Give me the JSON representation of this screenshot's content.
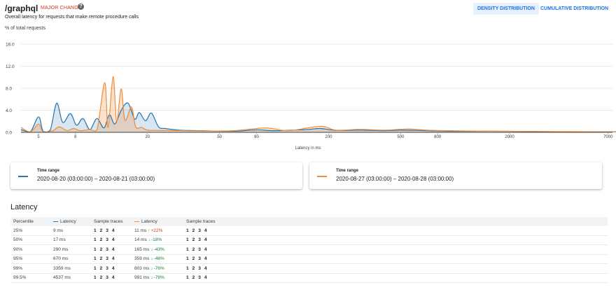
{
  "header": {
    "title": "/graphql",
    "badge": "MAJOR CHANGE",
    "help_icon": "?",
    "subtitle": "Overall latency for requests that make remote procedure calls",
    "y_unit": "% of total requests",
    "tabs": [
      "DENSITY DISTRIBUTION",
      "CUMULATIVE DISTRIBUTION"
    ]
  },
  "chart_data": {
    "type": "area",
    "ylabel": "% of total requests",
    "xlabel": "Latency in ms",
    "x_scale": "log",
    "y_ticks": [
      "16.0",
      "12.0",
      "8.0",
      "4.0",
      "0.0"
    ],
    "x_ticks": [
      "5",
      "8",
      "20",
      "50",
      "80",
      "200",
      "500",
      "800",
      "2000",
      "7000"
    ],
    "ylim": [
      0,
      16
    ],
    "colors": {
      "blue": "#1a73e8",
      "orange": "#f28c38"
    },
    "series": [
      {
        "name": "2020-08-20 (03:00:00) – 2020-08-21 (03:00:00)",
        "color": "#1f77b4",
        "points": [
          [
            4,
            0.5
          ],
          [
            4.5,
            0.1
          ],
          [
            5,
            2.8
          ],
          [
            5.3,
            0.2
          ],
          [
            5.8,
            0.4
          ],
          [
            6.3,
            5.3
          ],
          [
            6.8,
            1.8
          ],
          [
            7.5,
            3.4
          ],
          [
            8.1,
            1.3
          ],
          [
            8.8,
            2.5
          ],
          [
            9.6,
            0.5
          ],
          [
            10.5,
            2.5
          ],
          [
            11.5,
            0.8
          ],
          [
            12.3,
            3.2
          ],
          [
            13.2,
            1.5
          ],
          [
            14.3,
            4
          ],
          [
            15.6,
            5.3
          ],
          [
            17,
            2.4
          ],
          [
            18,
            3.6
          ],
          [
            19.5,
            2.1
          ],
          [
            21,
            3.5
          ],
          [
            23,
            1
          ],
          [
            25,
            0.7
          ],
          [
            30,
            0.4
          ],
          [
            40,
            0.3
          ],
          [
            60,
            0.2
          ],
          [
            80,
            0.45
          ],
          [
            100,
            0.3
          ],
          [
            150,
            0.5
          ],
          [
            180,
            0.7
          ],
          [
            220,
            0.35
          ],
          [
            300,
            0.4
          ],
          [
            400,
            0.3
          ],
          [
            500,
            0.4
          ],
          [
            700,
            0.3
          ],
          [
            1000,
            0.2
          ],
          [
            2000,
            0.2
          ],
          [
            4000,
            0.1
          ],
          [
            7000,
            0.1
          ],
          [
            9000,
            0.1
          ]
        ]
      },
      {
        "name": "2020-08-27 (03:00:00) – 2020-08-28 (03:00:00)",
        "color": "#f28c38",
        "points": [
          [
            4,
            0.9
          ],
          [
            4.5,
            0.1
          ],
          [
            5,
            1.5
          ],
          [
            5.3,
            0.1
          ],
          [
            6,
            0.3
          ],
          [
            6.5,
            1
          ],
          [
            7.2,
            0.3
          ],
          [
            7.8,
            0.7
          ],
          [
            8.5,
            0.3
          ],
          [
            9.5,
            0.5
          ],
          [
            10.5,
            0.4
          ],
          [
            11.6,
            9
          ],
          [
            12.1,
            0.9
          ],
          [
            12.9,
            10.1
          ],
          [
            13.5,
            2
          ],
          [
            14.3,
            7.9
          ],
          [
            15,
            2.2
          ],
          [
            16.3,
            4.6
          ],
          [
            17.2,
            1
          ],
          [
            18.5,
            0.9
          ],
          [
            20,
            0.4
          ],
          [
            23,
            0.35
          ],
          [
            30,
            0.3
          ],
          [
            40,
            0.25
          ],
          [
            60,
            0.3
          ],
          [
            90,
            0.8
          ],
          [
            120,
            0.3
          ],
          [
            180,
            1.1
          ],
          [
            220,
            0.4
          ],
          [
            300,
            0.55
          ],
          [
            400,
            0.4
          ],
          [
            550,
            0.6
          ],
          [
            700,
            0.4
          ],
          [
            900,
            0.3
          ],
          [
            1500,
            0.2
          ],
          [
            3000,
            0.15
          ],
          [
            7000,
            0.1
          ],
          [
            9000,
            0.1
          ]
        ]
      }
    ]
  },
  "cards": [
    {
      "label": "Time range",
      "value": "2020-08-20 (03:00:00) – 2020-08-21 (03:00:00)",
      "color": "#1f77b4"
    },
    {
      "label": "Time range",
      "value": "2020-08-27 (03:00:00) – 2020-08-28 (03:00:00)",
      "color": "#f28c38"
    }
  ],
  "latency": {
    "heading": "Latency",
    "columns": [
      "Percentile",
      "Latency",
      "Sample traces",
      "Latency",
      "Sample traces"
    ],
    "trace_labels": [
      "1",
      "2",
      "3",
      "4"
    ],
    "rows": [
      {
        "pct": "25%",
        "a": "9 ms",
        "b": "11 ms",
        "dir": "up",
        "change": "+22%"
      },
      {
        "pct": "50%",
        "a": "17 ms",
        "b": "14 ms",
        "dir": "down",
        "change": "-18%"
      },
      {
        "pct": "90%",
        "a": "290 ms",
        "b": "165 ms",
        "dir": "down",
        "change": "-43%"
      },
      {
        "pct": "95%",
        "a": "670 ms",
        "b": "359 ms",
        "dir": "down",
        "change": "-46%"
      },
      {
        "pct": "99%",
        "a": "3359 ms",
        "b": "803 ms",
        "dir": "down",
        "change": "-76%"
      },
      {
        "pct": "99.5%",
        "a": "4537 ms",
        "b": "991 ms",
        "dir": "down",
        "change": "-78%"
      }
    ]
  }
}
